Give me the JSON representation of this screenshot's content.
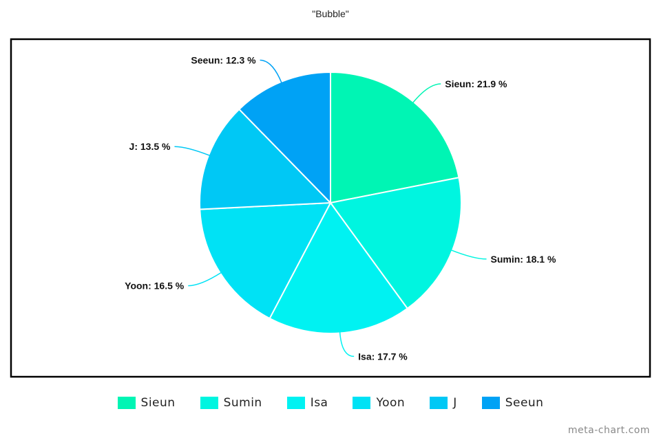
{
  "chart_data": {
    "type": "pie",
    "title": "\"Bubble\"",
    "unit": "%",
    "categories": [
      "Sieun",
      "Sumin",
      "Isa",
      "Yoon",
      "J",
      "Seeun"
    ],
    "values": [
      21.9,
      18.1,
      17.7,
      16.5,
      13.5,
      12.3
    ],
    "labels": [
      "Sieun: 21.9 %",
      "Sumin: 18.1 %",
      "Isa: 17.7 %",
      "Yoon: 16.5 %",
      "J: 13.5 %",
      "Seeun: 12.3 %"
    ],
    "colors": [
      "#00f5b4",
      "#00f5e0",
      "#00f2f2",
      "#00e2f5",
      "#00c8f5",
      "#00a2f5"
    ],
    "legend_position": "bottom",
    "start_angle": "12 o'clock, clockwise"
  },
  "watermark": "meta-chart.com"
}
